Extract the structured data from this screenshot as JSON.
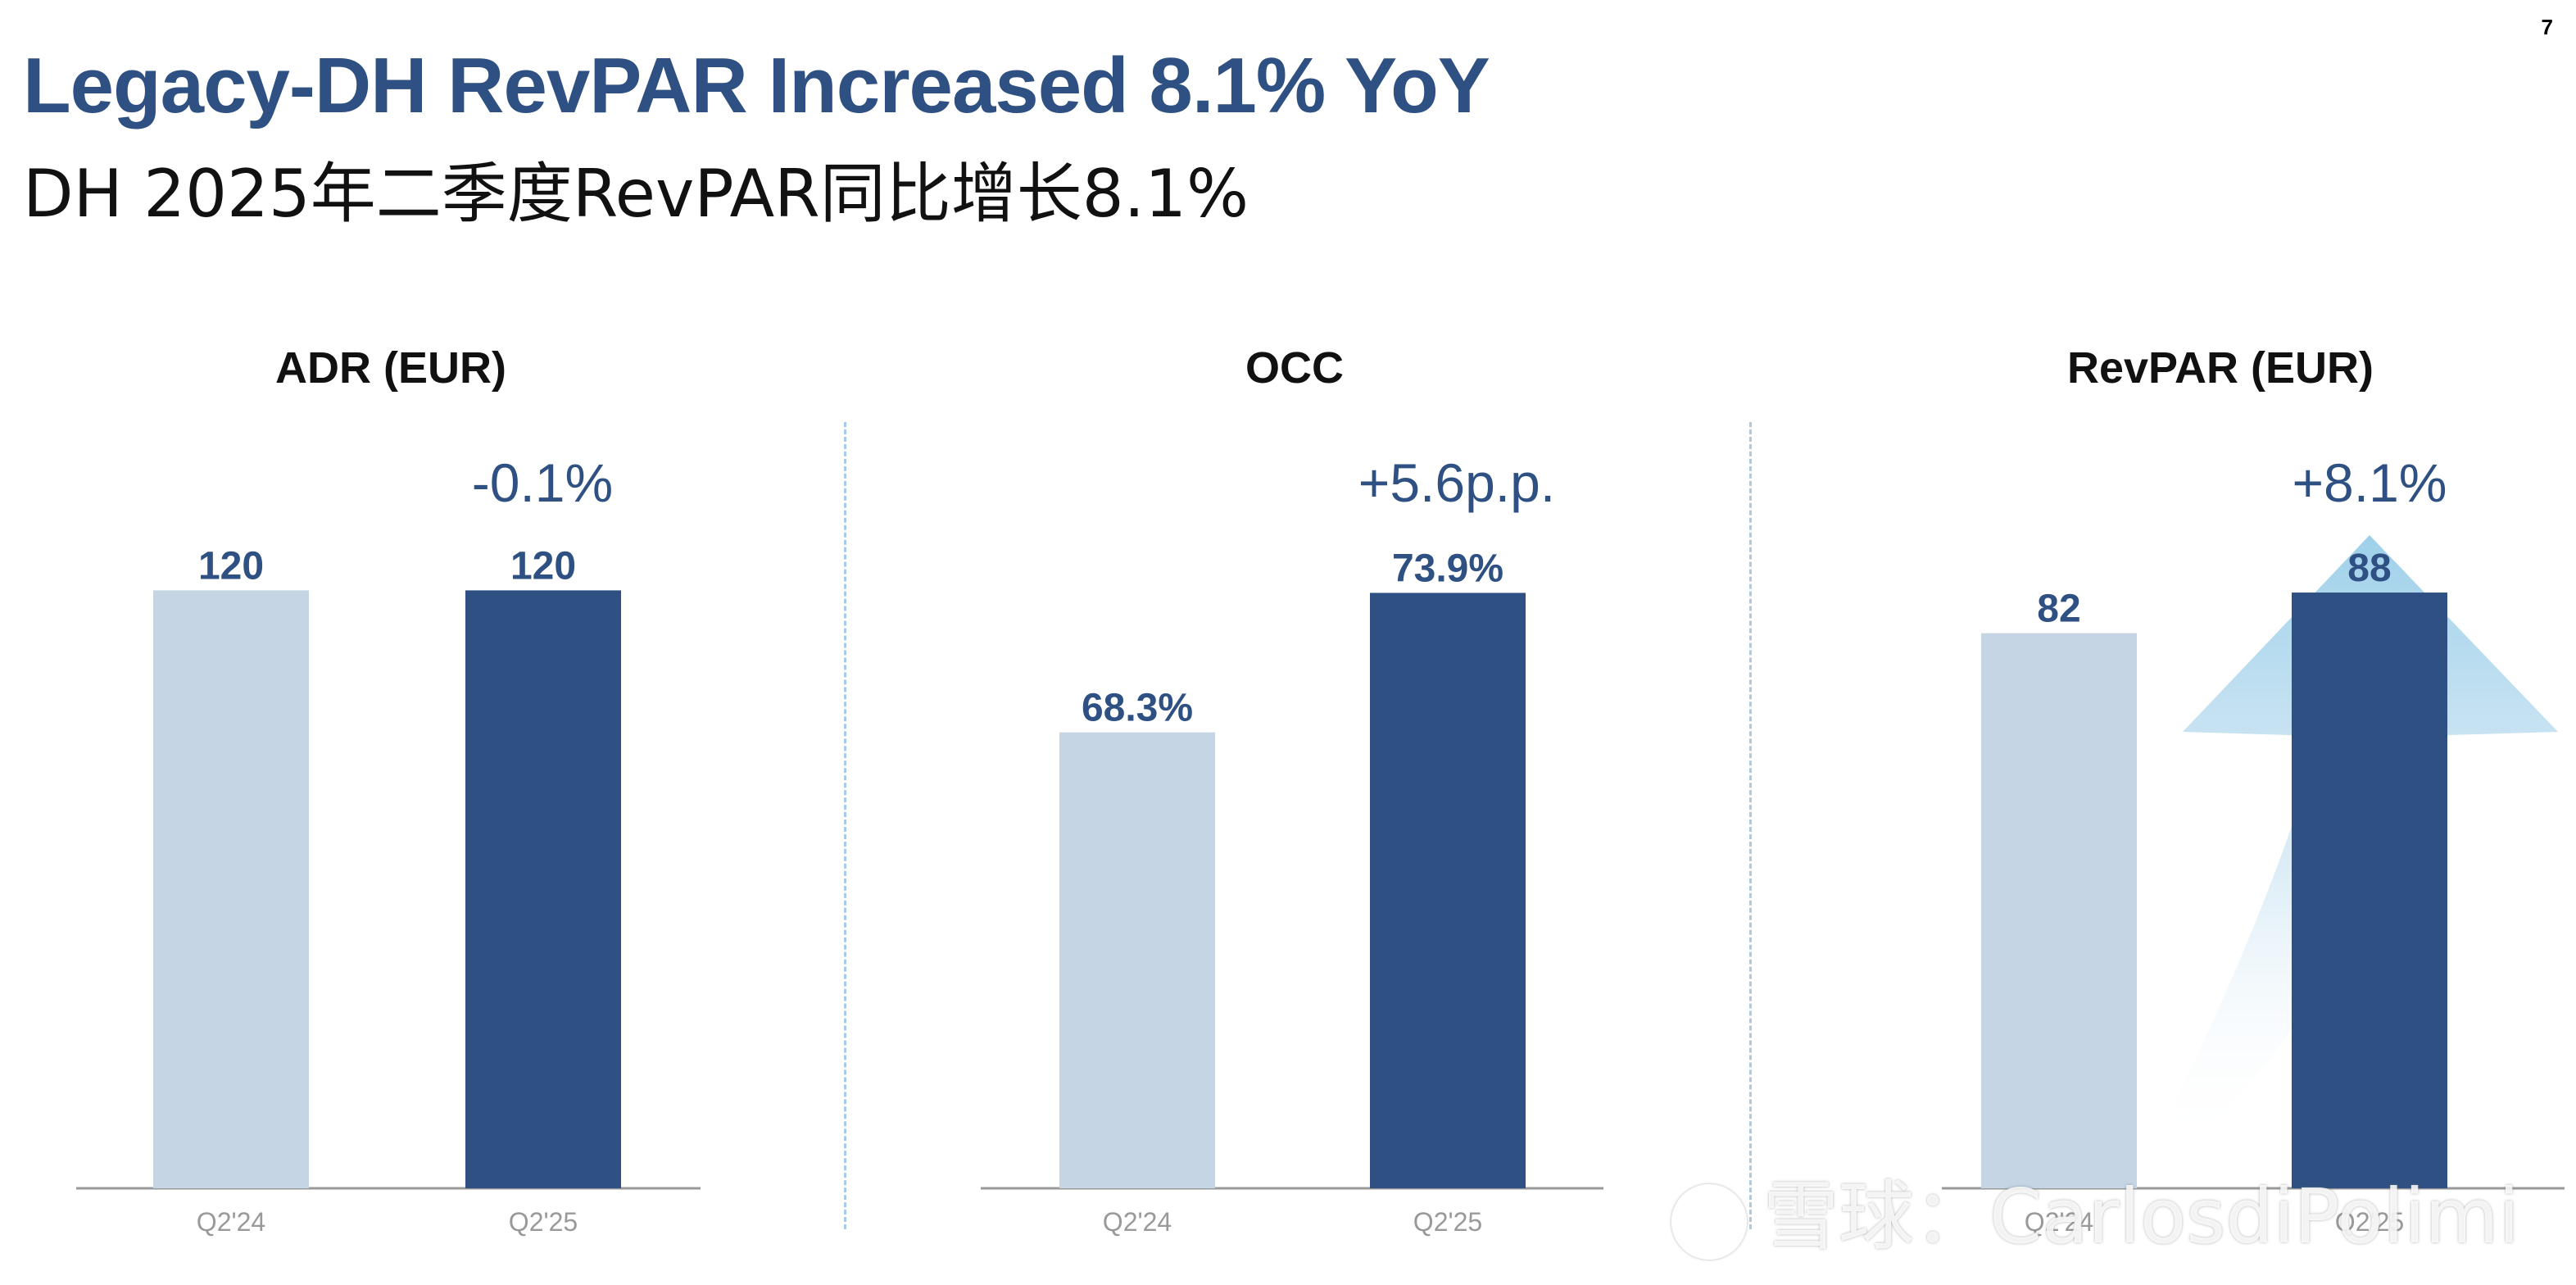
{
  "page_number": "7",
  "title": "Legacy-DH RevPAR Increased 8.1% YoY",
  "subtitle": "DH 2025年二季度RevPAR同比增长8.1%",
  "watermark": "雪球：CarlosdiPolimi",
  "colors": {
    "title": "#2e5082",
    "bar_prior": "#c5d5e4",
    "bar_current": "#2e5082",
    "change_label": "#2e5082",
    "arrow": "#9fd0ea",
    "axis": "#999999",
    "divider": "#a9cbe8"
  },
  "chart_data": [
    {
      "type": "bar",
      "title": "ADR (EUR)",
      "categories": [
        "Q2'24",
        "Q2'25"
      ],
      "values": [
        120,
        120
      ],
      "data_labels": [
        "120",
        "120"
      ],
      "change_label": "-0.1%",
      "ylim": [
        0,
        125
      ],
      "grid": false
    },
    {
      "type": "bar",
      "title": "OCC",
      "categories": [
        "Q2'24",
        "Q2'25"
      ],
      "values": [
        68.3,
        73.9
      ],
      "data_labels": [
        "68.3%",
        "73.9%"
      ],
      "change_label": "+5.6p.p.",
      "ylim": [
        50,
        75
      ],
      "grid": false
    },
    {
      "type": "bar",
      "title": "RevPAR (EUR)",
      "categories": [
        "Q2'24",
        "Q2'25"
      ],
      "values": [
        82,
        88
      ],
      "data_labels": [
        "82",
        "88"
      ],
      "change_label": "+8.1%",
      "ylim": [
        0,
        92
      ],
      "grid": false,
      "arrow": true
    }
  ]
}
